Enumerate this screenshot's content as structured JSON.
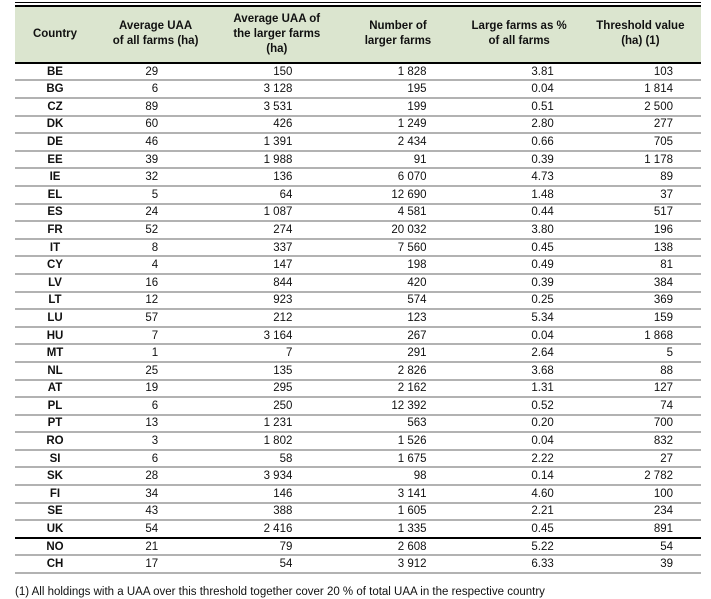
{
  "colors": {
    "header_bg": "#dbe5cf",
    "thick_rule": "#000000",
    "row_rule": "#b2b2b2",
    "text": "#111111"
  },
  "chart_data": {
    "type": "table",
    "columns": [
      "Country",
      "Average UAA\nof all farms (ha)",
      "Average UAA of\nthe larger farms\n(ha)",
      "Number of\nlarger farms",
      "Large farms as %\nof all farms",
      "Threshold value\n(ha) (1)"
    ],
    "rows": [
      [
        "BE",
        "29",
        "150",
        "1 828",
        "3.81",
        "103"
      ],
      [
        "BG",
        "6",
        "3 128",
        "195",
        "0.04",
        "1 814"
      ],
      [
        "CZ",
        "89",
        "3 531",
        "199",
        "0.51",
        "2 500"
      ],
      [
        "DK",
        "60",
        "426",
        "1 249",
        "2.80",
        "277"
      ],
      [
        "DE",
        "46",
        "1 391",
        "2 434",
        "0.66",
        "705"
      ],
      [
        "EE",
        "39",
        "1 988",
        "91",
        "0.39",
        "1 178"
      ],
      [
        "IE",
        "32",
        "136",
        "6 070",
        "4.73",
        "89"
      ],
      [
        "EL",
        "5",
        "64",
        "12 690",
        "1.48",
        "37"
      ],
      [
        "ES",
        "24",
        "1 087",
        "4 581",
        "0.44",
        "517"
      ],
      [
        "FR",
        "52",
        "274",
        "20 032",
        "3.80",
        "196"
      ],
      [
        "IT",
        "8",
        "337",
        "7 560",
        "0.45",
        "138"
      ],
      [
        "CY",
        "4",
        "147",
        "198",
        "0.49",
        "81"
      ],
      [
        "LV",
        "16",
        "844",
        "420",
        "0.39",
        "384"
      ],
      [
        "LT",
        "12",
        "923",
        "574",
        "0.25",
        "369"
      ],
      [
        "LU",
        "57",
        "212",
        "123",
        "5.34",
        "159"
      ],
      [
        "HU",
        "7",
        "3 164",
        "267",
        "0.04",
        "1 868"
      ],
      [
        "MT",
        "1",
        "7",
        "291",
        "2.64",
        "5"
      ],
      [
        "NL",
        "25",
        "135",
        "2 826",
        "3.68",
        "88"
      ],
      [
        "AT",
        "19",
        "295",
        "2 162",
        "1.31",
        "127"
      ],
      [
        "PL",
        "6",
        "250",
        "12 392",
        "0.52",
        "74"
      ],
      [
        "PT",
        "13",
        "1 231",
        "563",
        "0.20",
        "700"
      ],
      [
        "RO",
        "3",
        "1 802",
        "1 526",
        "0.04",
        "832"
      ],
      [
        "SI",
        "6",
        "58",
        "1 675",
        "2.22",
        "27"
      ],
      [
        "SK",
        "28",
        "3 934",
        "98",
        "0.14",
        "2 782"
      ],
      [
        "FI",
        "34",
        "146",
        "3 141",
        "4.60",
        "100"
      ],
      [
        "SE",
        "43",
        "388",
        "1 605",
        "2.21",
        "234"
      ],
      [
        "UK",
        "54",
        "2 416",
        "1 335",
        "0.45",
        "891"
      ],
      [
        "NO",
        "21",
        "79",
        "2 608",
        "5.22",
        "54"
      ],
      [
        "CH",
        "17",
        "54",
        "3 912",
        "6.33",
        "39"
      ]
    ],
    "thick_rule_after_country": "UK",
    "footnote": "(1) All holdings with a UAA over this threshold together cover 20 % of total UAA in the respective country"
  }
}
